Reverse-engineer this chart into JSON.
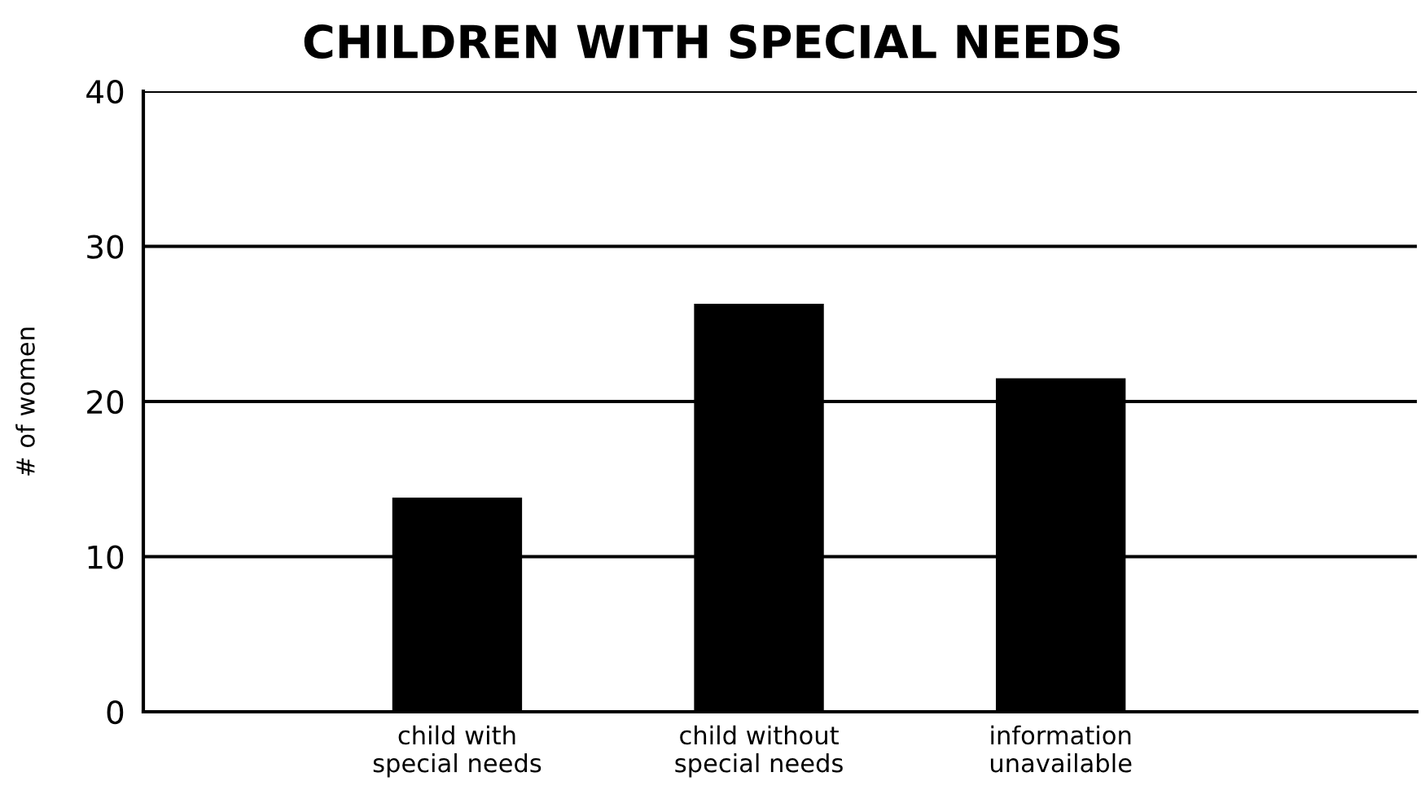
{
  "chart_data": {
    "type": "bar",
    "title": "CHILDREN WITH SPECIAL NEEDS",
    "ylabel": "# of women",
    "categories": [
      "child with\nspecial needs",
      "child without\nspecial needs",
      "information\nunavailable"
    ],
    "values": [
      13.8,
      26.3,
      21.5
    ],
    "color": "#000000",
    "ylim": [
      0,
      40
    ],
    "yticks": [
      0,
      10,
      20,
      30,
      40
    ],
    "grid": "y"
  }
}
